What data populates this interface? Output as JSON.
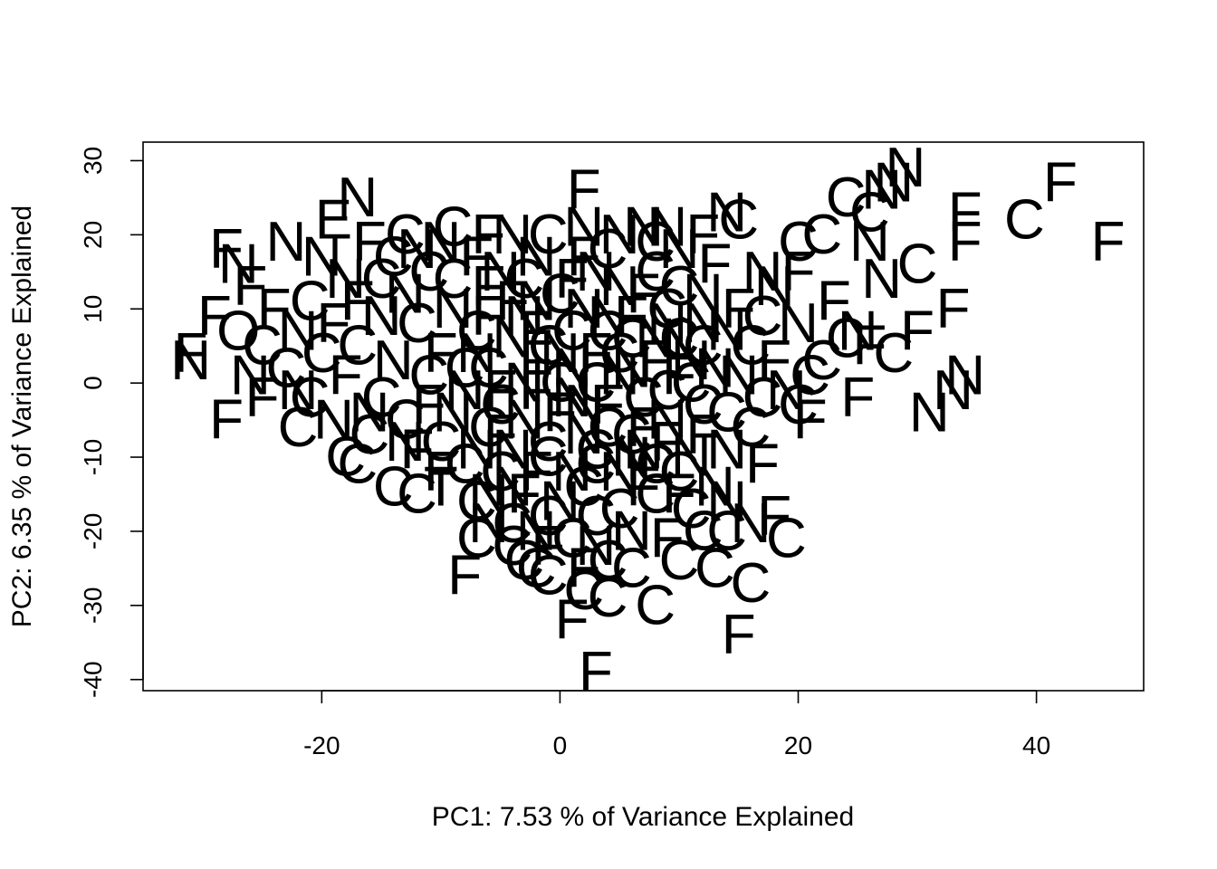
{
  "chart_data": {
    "type": "scatter",
    "title": "",
    "xlabel": "PC1: 7.53 % of Variance Explained",
    "ylabel": "PC2: 6.35 % of Variance Explained",
    "xlim": [
      -35,
      49
    ],
    "ylim": [
      -41.5,
      32.5
    ],
    "x_ticks": [
      -20,
      0,
      20,
      40
    ],
    "y_ticks": [
      -40,
      -30,
      -20,
      -10,
      0,
      10,
      20,
      30
    ],
    "x_tick_labels": [
      "-20",
      "0",
      "20",
      "40"
    ],
    "y_tick_labels": [
      "-40",
      "-30",
      "-20",
      "-10",
      "0",
      "10",
      "20",
      "30"
    ],
    "marker": "text label",
    "grid": false,
    "legend": "none",
    "colors": {
      "points": "#000000",
      "axes": "#000000",
      "background": "#ffffff"
    },
    "categories": [
      "C",
      "F",
      "N"
    ],
    "points": [
      {
        "x": 29,
        "y": 29,
        "label": "N"
      },
      {
        "x": 28,
        "y": 27,
        "label": "N"
      },
      {
        "x": 27,
        "y": 26,
        "label": "N"
      },
      {
        "x": 24,
        "y": 25,
        "label": "C"
      },
      {
        "x": 42,
        "y": 27,
        "label": "F"
      },
      {
        "x": 46,
        "y": 19,
        "label": "F"
      },
      {
        "x": 39,
        "y": 22,
        "label": "C"
      },
      {
        "x": 34,
        "y": 23,
        "label": "F"
      },
      {
        "x": 34,
        "y": 19,
        "label": "F"
      },
      {
        "x": 26,
        "y": 23,
        "label": "C"
      },
      {
        "x": 26,
        "y": 19,
        "label": "N"
      },
      {
        "x": 30,
        "y": 16,
        "label": "C"
      },
      {
        "x": 27,
        "y": 14,
        "label": "N"
      },
      {
        "x": 33,
        "y": 10,
        "label": "F"
      },
      {
        "x": 30,
        "y": 7,
        "label": "F"
      },
      {
        "x": 28,
        "y": 4,
        "label": "C"
      },
      {
        "x": 34,
        "y": 1,
        "label": "N"
      },
      {
        "x": 33,
        "y": -1,
        "label": "N"
      },
      {
        "x": 31,
        "y": -4,
        "label": "N"
      },
      {
        "x": 25,
        "y": -2,
        "label": "F"
      },
      {
        "x": 21,
        "y": -5,
        "label": "F"
      },
      {
        "x": 20,
        "y": -3,
        "label": "C"
      },
      {
        "x": 17,
        "y": -2,
        "label": "C"
      },
      {
        "x": 21,
        "y": 1,
        "label": "C"
      },
      {
        "x": 24,
        "y": 6,
        "label": "C"
      },
      {
        "x": 20,
        "y": 8,
        "label": "N"
      },
      {
        "x": 20,
        "y": 15,
        "label": "F"
      },
      {
        "x": 22,
        "y": 20,
        "label": "C"
      },
      {
        "x": 14,
        "y": 23,
        "label": "N"
      },
      {
        "x": 15,
        "y": 22,
        "label": "C"
      },
      {
        "x": 9,
        "y": 21,
        "label": "N"
      },
      {
        "x": 7,
        "y": 21,
        "label": "N"
      },
      {
        "x": 2,
        "y": 26,
        "label": "F"
      },
      {
        "x": 2,
        "y": 21,
        "label": "N"
      },
      {
        "x": -4,
        "y": 20,
        "label": "N"
      },
      {
        "x": -9,
        "y": 21,
        "label": "C"
      },
      {
        "x": -17,
        "y": 25,
        "label": "N"
      },
      {
        "x": -19,
        "y": 22,
        "label": "E"
      },
      {
        "x": -23,
        "y": 19,
        "label": "N"
      },
      {
        "x": -28,
        "y": 18,
        "label": "F"
      },
      {
        "x": -26,
        "y": 13,
        "label": "F"
      },
      {
        "x": -29,
        "y": 9,
        "label": "F"
      },
      {
        "x": -27,
        "y": 7,
        "label": "O"
      },
      {
        "x": -31,
        "y": 4,
        "label": "F"
      },
      {
        "x": -31,
        "y": 3,
        "label": "N"
      },
      {
        "x": -26,
        "y": 1,
        "label": "N"
      },
      {
        "x": -25,
        "y": -2,
        "label": "F"
      },
      {
        "x": -28,
        "y": -5,
        "label": "F"
      },
      {
        "x": -22,
        "y": -6,
        "label": "C"
      },
      {
        "x": -18,
        "y": -10,
        "label": "C"
      },
      {
        "x": -17,
        "y": -11,
        "label": "C"
      },
      {
        "x": -14,
        "y": -14,
        "label": "C"
      },
      {
        "x": -12,
        "y": -15,
        "label": "C"
      },
      {
        "x": -10,
        "y": -14,
        "label": "T"
      },
      {
        "x": -6,
        "y": -19,
        "label": "N"
      },
      {
        "x": -7,
        "y": -21,
        "label": "C"
      },
      {
        "x": -8,
        "y": -26,
        "label": "F"
      },
      {
        "x": -3,
        "y": -24,
        "label": "C"
      },
      {
        "x": -1,
        "y": -26,
        "label": "C"
      },
      {
        "x": 2,
        "y": -28,
        "label": "C"
      },
      {
        "x": 4,
        "y": -29,
        "label": "C"
      },
      {
        "x": 1,
        "y": -32,
        "label": "F"
      },
      {
        "x": 3,
        "y": -39,
        "label": "F"
      },
      {
        "x": 8,
        "y": -30,
        "label": "C"
      },
      {
        "x": 15,
        "y": -34,
        "label": "F"
      },
      {
        "x": 10,
        "y": -24,
        "label": "C"
      },
      {
        "x": 13,
        "y": -25,
        "label": "C"
      },
      {
        "x": 16,
        "y": -27,
        "label": "C"
      },
      {
        "x": 19,
        "y": -21,
        "label": "C"
      },
      {
        "x": 14,
        "y": -20,
        "label": "C"
      },
      {
        "x": 18,
        "y": -18,
        "label": "F"
      },
      {
        "x": 16,
        "y": -19,
        "label": "N"
      },
      {
        "x": 17,
        "y": -11,
        "label": "F"
      },
      {
        "x": 14,
        "y": -9,
        "label": "N"
      },
      {
        "x": 12,
        "y": -7,
        "label": "F"
      },
      {
        "x": 10,
        "y": -12,
        "label": "C"
      },
      {
        "x": 11,
        "y": 0,
        "label": "C"
      },
      {
        "x": 13,
        "y": 2,
        "label": "N"
      },
      {
        "x": 12,
        "y": 8,
        "label": "N"
      },
      {
        "x": 9,
        "y": 10,
        "label": "C"
      },
      {
        "x": 5,
        "y": 13,
        "label": "N"
      },
      {
        "x": 1,
        "y": 14,
        "label": "F"
      },
      {
        "x": -2,
        "y": 11,
        "label": "N"
      },
      {
        "x": -6,
        "y": 13,
        "label": "F"
      },
      {
        "x": -11,
        "y": 15,
        "label": "C"
      },
      {
        "x": -14,
        "y": 17,
        "label": "C"
      },
      {
        "x": -18,
        "y": 14,
        "label": "N"
      },
      {
        "x": -21,
        "y": 11,
        "label": "C"
      },
      {
        "x": -22,
        "y": 7,
        "label": "N"
      },
      {
        "x": -20,
        "y": 4,
        "label": "C"
      },
      {
        "x": -18,
        "y": 1,
        "label": "F"
      },
      {
        "x": -21,
        "y": -2,
        "label": "C"
      },
      {
        "x": -16,
        "y": -4,
        "label": "N"
      },
      {
        "x": -13,
        "y": -5,
        "label": "C"
      },
      {
        "x": -10,
        "y": -8,
        "label": "C"
      },
      {
        "x": -7,
        "y": -9,
        "label": "N"
      },
      {
        "x": -5,
        "y": -12,
        "label": "C"
      },
      {
        "x": -3,
        "y": -15,
        "label": "F"
      },
      {
        "x": -1,
        "y": -18,
        "label": "C"
      },
      {
        "x": 1,
        "y": -21,
        "label": "C"
      },
      {
        "x": 3,
        "y": -22,
        "label": "N"
      },
      {
        "x": 5,
        "y": -17,
        "label": "C"
      },
      {
        "x": 7,
        "y": -14,
        "label": "F"
      },
      {
        "x": 6,
        "y": -10,
        "label": "N"
      },
      {
        "x": 4,
        "y": -6,
        "label": "C"
      },
      {
        "x": 2,
        "y": -3,
        "label": "N"
      },
      {
        "x": 0,
        "y": 0,
        "label": "C"
      },
      {
        "x": -2,
        "y": 3,
        "label": "F"
      },
      {
        "x": -4,
        "y": 6,
        "label": "N"
      },
      {
        "x": -6,
        "y": 2,
        "label": "C"
      },
      {
        "x": -8,
        "y": -1,
        "label": "N"
      },
      {
        "x": -10,
        "y": 4,
        "label": "F"
      },
      {
        "x": -12,
        "y": 8,
        "label": "C"
      },
      {
        "x": -14,
        "y": 3,
        "label": "N"
      },
      {
        "x": -15,
        "y": -2,
        "label": "C"
      },
      {
        "x": -11,
        "y": -3,
        "label": "F"
      },
      {
        "x": -9,
        "y": 10,
        "label": "N"
      },
      {
        "x": -7,
        "y": 7,
        "label": "C"
      },
      {
        "x": -3,
        "y": 9,
        "label": "N"
      },
      {
        "x": 1,
        "y": 7,
        "label": "C"
      },
      {
        "x": 3,
        "y": 4,
        "label": "F"
      },
      {
        "x": 5,
        "y": 1,
        "label": "N"
      },
      {
        "x": 7,
        "y": -2,
        "label": "C"
      },
      {
        "x": 9,
        "y": -5,
        "label": "N"
      },
      {
        "x": 8,
        "y": 3,
        "label": "F"
      },
      {
        "x": 6,
        "y": 6,
        "label": "C"
      },
      {
        "x": 4,
        "y": 9,
        "label": "N"
      },
      {
        "x": 7,
        "y": 12,
        "label": "F"
      },
      {
        "x": 10,
        "y": 6,
        "label": "C"
      },
      {
        "x": 11,
        "y": 3,
        "label": "N"
      },
      {
        "x": 12,
        "y": -3,
        "label": "C"
      },
      {
        "x": 9,
        "y": -8,
        "label": "F"
      },
      {
        "x": 3,
        "y": -9,
        "label": "C"
      },
      {
        "x": 1,
        "y": -12,
        "label": "N"
      },
      {
        "x": -1,
        "y": -8,
        "label": "C"
      },
      {
        "x": -3,
        "y": -5,
        "label": "N"
      },
      {
        "x": -5,
        "y": -3,
        "label": "C"
      },
      {
        "x": -2,
        "y": -1,
        "label": "F"
      },
      {
        "x": 1,
        "y": 2,
        "label": "N"
      },
      {
        "x": -1,
        "y": 5,
        "label": "C"
      },
      {
        "x": 2,
        "y": 10,
        "label": "N"
      },
      {
        "x": -5,
        "y": 15,
        "label": "N"
      },
      {
        "x": 8,
        "y": 15,
        "label": "C"
      },
      {
        "x": 12,
        "y": 12,
        "label": "N"
      },
      {
        "x": 15,
        "y": 10,
        "label": "F"
      },
      {
        "x": 16,
        "y": 5,
        "label": "C"
      },
      {
        "x": 15,
        "y": 1,
        "label": "N"
      },
      {
        "x": 14,
        "y": -4,
        "label": "C"
      },
      {
        "x": 11,
        "y": -10,
        "label": "N"
      },
      {
        "x": 8,
        "y": -15,
        "label": "C"
      },
      {
        "x": 6,
        "y": -20,
        "label": "N"
      },
      {
        "x": 4,
        "y": -24,
        "label": "C"
      },
      {
        "x": -1,
        "y": -22,
        "label": "F"
      },
      {
        "x": -4,
        "y": -19,
        "label": "C"
      },
      {
        "x": -6,
        "y": -15,
        "label": "N"
      },
      {
        "x": -8,
        "y": -11,
        "label": "C"
      },
      {
        "x": -12,
        "y": -9,
        "label": "F"
      },
      {
        "x": -16,
        "y": -7,
        "label": "C"
      },
      {
        "x": -19,
        "y": -5,
        "label": "N"
      },
      {
        "x": -23,
        "y": 2,
        "label": "C"
      },
      {
        "x": -24,
        "y": 10,
        "label": "F"
      },
      {
        "x": -20,
        "y": 17,
        "label": "N"
      },
      {
        "x": -16,
        "y": 19,
        "label": "F"
      },
      {
        "x": -12,
        "y": 18,
        "label": "N"
      },
      {
        "x": -7,
        "y": 17,
        "label": "F"
      },
      {
        "x": -2,
        "y": 17,
        "label": "N"
      },
      {
        "x": 4,
        "y": 18,
        "label": "C"
      },
      {
        "x": 10,
        "y": 18,
        "label": "N"
      },
      {
        "x": 13,
        "y": 16,
        "label": "F"
      },
      {
        "x": 18,
        "y": 13,
        "label": "N"
      },
      {
        "x": 23,
        "y": 11,
        "label": "F"
      },
      {
        "x": 25,
        "y": 7,
        "label": "N"
      },
      {
        "x": 26,
        "y": 5,
        "label": "F"
      },
      {
        "x": 22,
        "y": 3,
        "label": "C"
      },
      {
        "x": 18,
        "y": 3,
        "label": "F"
      },
      {
        "x": 19,
        "y": -1,
        "label": "N"
      },
      {
        "x": 16,
        "y": -6,
        "label": "C"
      },
      {
        "x": 13,
        "y": -14,
        "label": "N"
      },
      {
        "x": 11,
        "y": -17,
        "label": "C"
      },
      {
        "x": 9,
        "y": -21,
        "label": "F"
      },
      {
        "x": 6,
        "y": -25,
        "label": "C"
      },
      {
        "x": 2,
        "y": -25,
        "label": "F"
      },
      {
        "x": -2,
        "y": -25,
        "label": "C"
      },
      {
        "x": -4,
        "y": -22,
        "label": "C"
      },
      {
        "x": 0,
        "y": -16,
        "label": "N"
      },
      {
        "x": -2,
        "y": -12,
        "label": "F"
      },
      {
        "x": 2,
        "y": -14,
        "label": "C"
      },
      {
        "x": 5,
        "y": -12,
        "label": "N"
      },
      {
        "x": 7,
        "y": -6,
        "label": "F"
      },
      {
        "x": 9,
        "y": -1,
        "label": "C"
      },
      {
        "x": 6,
        "y": 2,
        "label": "N"
      },
      {
        "x": 3,
        "y": 0,
        "label": "C"
      },
      {
        "x": 0,
        "y": -4,
        "label": "F"
      },
      {
        "x": -3,
        "y": 0,
        "label": "N"
      },
      {
        "x": -6,
        "y": -6,
        "label": "C"
      },
      {
        "x": -9,
        "y": -4,
        "label": "N"
      },
      {
        "x": -11,
        "y": 1,
        "label": "C"
      },
      {
        "x": -13,
        "y": 12,
        "label": "N"
      },
      {
        "x": -9,
        "y": 14,
        "label": "C"
      },
      {
        "x": -4,
        "y": 11,
        "label": "F"
      },
      {
        "x": 0,
        "y": 12,
        "label": "C"
      },
      {
        "x": 3,
        "y": 15,
        "label": "N"
      },
      {
        "x": 6,
        "y": 9,
        "label": "F"
      },
      {
        "x": 9,
        "y": 8,
        "label": "N"
      },
      {
        "x": 12,
        "y": 5,
        "label": "C"
      },
      {
        "x": 14,
        "y": 7,
        "label": "N"
      },
      {
        "x": 17,
        "y": 9,
        "label": "C"
      },
      {
        "x": 17,
        "y": 15,
        "label": "N"
      },
      {
        "x": 20,
        "y": 19,
        "label": "C"
      },
      {
        "x": 12,
        "y": 20,
        "label": "F"
      },
      {
        "x": -27,
        "y": 16,
        "label": "N"
      },
      {
        "x": -25,
        "y": 5,
        "label": "C"
      },
      {
        "x": -22,
        "y": -1,
        "label": "N"
      },
      {
        "x": -19,
        "y": 8,
        "label": "F"
      },
      {
        "x": -17,
        "y": 5,
        "label": "C"
      },
      {
        "x": -15,
        "y": 9,
        "label": "N"
      },
      {
        "x": -13,
        "y": -8,
        "label": "N"
      },
      {
        "x": -10,
        "y": -12,
        "label": "F"
      },
      {
        "x": -7,
        "y": -16,
        "label": "C"
      },
      {
        "x": -4,
        "y": -9,
        "label": "N"
      },
      {
        "x": -1,
        "y": -10,
        "label": "C"
      },
      {
        "x": 2,
        "y": -7,
        "label": "N"
      },
      {
        "x": 4,
        "y": -3,
        "label": "F"
      },
      {
        "x": 8,
        "y": -11,
        "label": "C"
      },
      {
        "x": 10,
        "y": -15,
        "label": "F"
      },
      {
        "x": 12,
        "y": -20,
        "label": "C"
      },
      {
        "x": 14,
        "y": -16,
        "label": "N"
      },
      {
        "x": 10,
        "y": 13,
        "label": "C"
      },
      {
        "x": 5,
        "y": 20,
        "label": "N"
      },
      {
        "x": -1,
        "y": 20,
        "label": "C"
      },
      {
        "x": -6,
        "y": 20,
        "label": "F"
      },
      {
        "x": -10,
        "y": 19,
        "label": "N"
      },
      {
        "x": -13,
        "y": 20,
        "label": "C"
      },
      {
        "x": -15,
        "y": 14,
        "label": "C"
      },
      {
        "x": -17,
        "y": 11,
        "label": "F"
      },
      {
        "x": -8,
        "y": 2,
        "label": "C"
      },
      {
        "x": -5,
        "y": -1,
        "label": "F"
      },
      {
        "x": 0,
        "y": 4,
        "label": "N"
      },
      {
        "x": 5,
        "y": 4,
        "label": "C"
      },
      {
        "x": 10,
        "y": 1,
        "label": "F"
      },
      {
        "x": 7,
        "y": -9,
        "label": "N"
      },
      {
        "x": 3,
        "y": -18,
        "label": "C"
      },
      {
        "x": -2,
        "y": -20,
        "label": "N"
      },
      {
        "x": -5,
        "y": -7,
        "label": "F"
      },
      {
        "x": -7,
        "y": 4,
        "label": "N"
      },
      {
        "x": -3,
        "y": 14,
        "label": "C"
      },
      {
        "x": 2,
        "y": 17,
        "label": "F"
      },
      {
        "x": 8,
        "y": 19,
        "label": "C"
      },
      {
        "x": 1,
        "y": -2,
        "label": "N"
      },
      {
        "x": -2,
        "y": 7,
        "label": "F"
      },
      {
        "x": 4,
        "y": 7,
        "label": "C"
      },
      {
        "x": 3,
        "y": -11,
        "label": "C"
      },
      {
        "x": -4,
        "y": -14,
        "label": "N"
      },
      {
        "x": 6,
        "y": -7,
        "label": "C"
      },
      {
        "x": -6,
        "y": 9,
        "label": "F"
      },
      {
        "x": 8,
        "y": 6,
        "label": "N"
      }
    ]
  }
}
